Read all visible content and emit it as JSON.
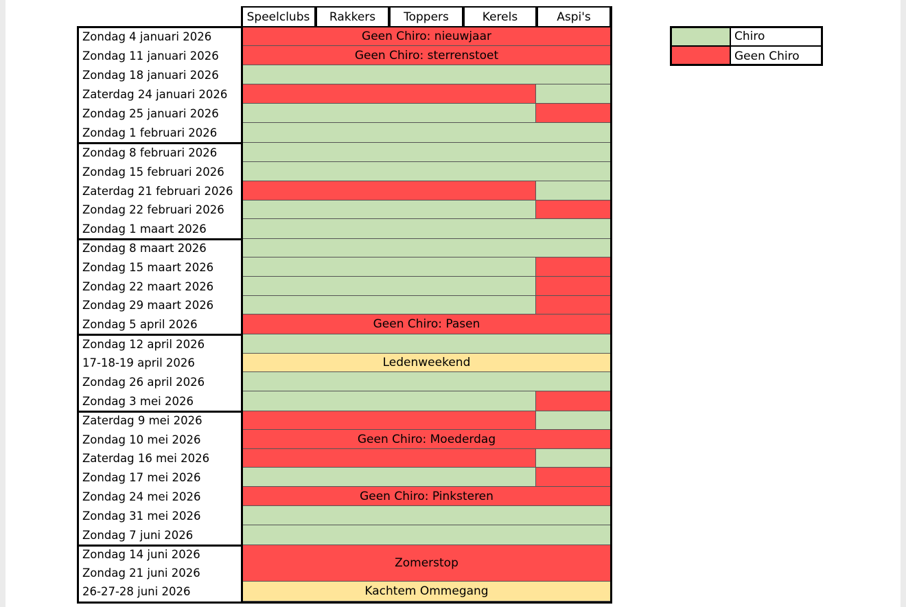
{
  "headers": [
    "Speelclubs",
    "Rakkers",
    "Toppers",
    "Kerels",
    "Aspi's"
  ],
  "rows": [
    {
      "date": "Zondag 4 januari 2026",
      "fill": "r",
      "text": "Geen Chiro: nieuwjaar"
    },
    {
      "date": "Zondag 11 januari 2026",
      "fill": "r",
      "text": "Geen Chiro: sterrenstoet"
    },
    {
      "date": "Zondag 18 januari 2026",
      "fill": "g"
    },
    {
      "date": "Zaterdag 24 januari 2026",
      "fill": "r",
      "aspi": "g"
    },
    {
      "date": "Zondag 25 januari 2026",
      "fill": "g",
      "aspi": "r"
    },
    {
      "date": "Zondag 1 februari 2026",
      "fill": "g"
    },
    {
      "date": "Zondag 8 februari 2026",
      "fill": "g"
    },
    {
      "date": "Zondag 15 februari 2026",
      "fill": "g"
    },
    {
      "date": "Zaterdag 21 februari 2026",
      "fill": "r",
      "aspi": "g"
    },
    {
      "date": "Zondag 22 februari 2026",
      "fill": "g",
      "aspi": "r"
    },
    {
      "date": "Zondag 1 maart 2026",
      "fill": "g"
    },
    {
      "date": "Zondag 8 maart 2026",
      "fill": "g"
    },
    {
      "date": "Zondag 15 maart 2026",
      "fill": "g",
      "aspi": "r"
    },
    {
      "date": "Zondag 22 maart 2026",
      "fill": "g",
      "aspi": "r"
    },
    {
      "date": "Zondag 29 maart 2026",
      "fill": "g",
      "aspi": "r"
    },
    {
      "date": "Zondag 5 april 2026",
      "fill": "r",
      "text": "Geen Chiro: Pasen"
    },
    {
      "date": "Zondag 12 april 2026",
      "fill": "g"
    },
    {
      "date": "17-18-19 april 2026",
      "fill": "y",
      "text": "Ledenweekend"
    },
    {
      "date": "Zondag 26 april 2026",
      "fill": "g"
    },
    {
      "date": "Zondag 3 mei 2026",
      "fill": "g",
      "aspi": "r"
    },
    {
      "date": "Zaterdag 9 mei 2026",
      "fill": "r",
      "aspi": "g"
    },
    {
      "date": "Zondag 10 mei 2026",
      "fill": "r",
      "text": "Geen Chiro: Moederdag"
    },
    {
      "date": "Zaterdag 16 mei 2026",
      "fill": "r",
      "aspi": "g"
    },
    {
      "date": "Zondag 17 mei 2026",
      "fill": "g",
      "aspi": "r"
    },
    {
      "date": "Zondag 24 mei 2026",
      "fill": "r",
      "text": "Geen Chiro: Pinksteren"
    },
    {
      "date": "Zondag 31 mei 2026",
      "fill": "g"
    },
    {
      "date": "Zondag 7 juni 2026",
      "fill": "g"
    },
    {
      "date": "Zondag 14 juni 2026",
      "fill": "r",
      "text": "Zomerstop",
      "span": 2
    },
    {
      "date": "Zondag 21 juni 2026",
      "skip": true
    },
    {
      "date": "26-27-28 juni 2026",
      "fill": "y",
      "text": "Kachtem Ommegang"
    }
  ],
  "legend": [
    {
      "label": "Chiro",
      "fill": "g"
    },
    {
      "label": "Geen Chiro",
      "fill": "r"
    }
  ],
  "colors": {
    "green": "#c6e0b4",
    "red": "#ff4d4d",
    "yellow": "#ffe599"
  }
}
